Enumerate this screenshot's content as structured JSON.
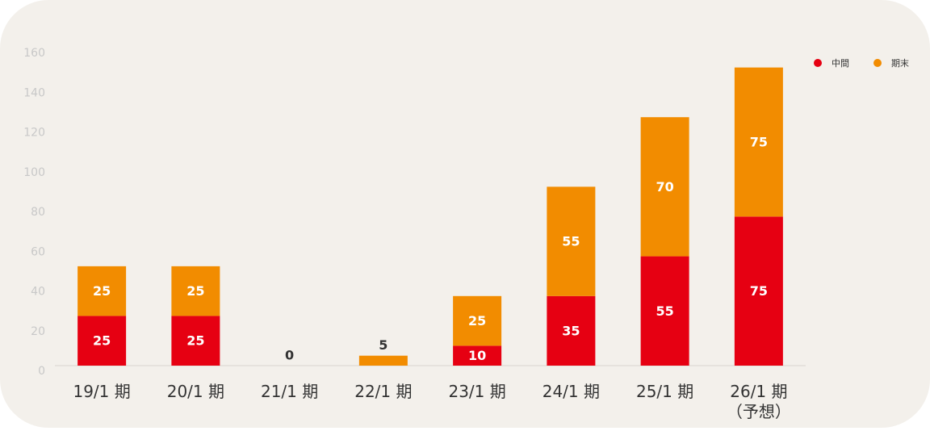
{
  "chart_data": {
    "type": "stacked_bar",
    "categories": [
      "19/1 期",
      "20/1 期",
      "21/1 期",
      "22/1 期",
      "23/1 期",
      "24/1 期",
      "25/1 期",
      "26/1 期\n（予想）"
    ],
    "series": [
      {
        "name": "中間",
        "color": "#e60012",
        "values": [
          25,
          25,
          0,
          0,
          10,
          35,
          55,
          75
        ]
      },
      {
        "name": "期末",
        "color": "#f28c00",
        "values": [
          25,
          25,
          0,
          5,
          25,
          55,
          70,
          75
        ]
      }
    ],
    "ylim": [
      0,
      160
    ],
    "yticks": [
      0,
      20,
      40,
      60,
      80,
      100,
      120,
      140,
      160
    ],
    "grid": false,
    "legend": "top-right"
  }
}
